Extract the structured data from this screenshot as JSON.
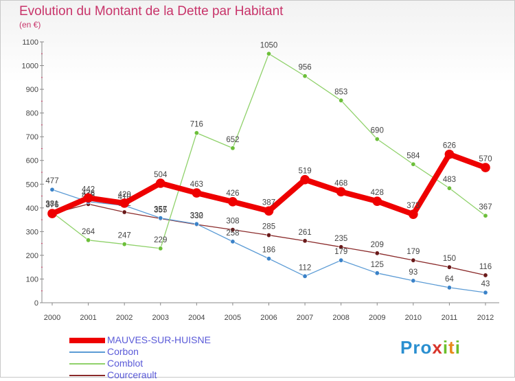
{
  "header": {
    "title": "Evolution du Montant de la Dette par Habitant",
    "subtitle": "(en €)"
  },
  "brand": {
    "logo_text": "Proxiti"
  },
  "colors": {
    "title": "#c8346a",
    "axis": "#888888",
    "grid": "#e6e6e6",
    "tick_label": "#444444",
    "value_label": "#444444",
    "legend_text": "#5a5ad8"
  },
  "chart_data": {
    "type": "line",
    "title": "Evolution du Montant de la Dette par Habitant",
    "subtitle": "(en €)",
    "xlabel": "",
    "ylabel": "",
    "x": [
      "2000",
      "2001",
      "2002",
      "2003",
      "2004",
      "2005",
      "2006",
      "2007",
      "2008",
      "2009",
      "2010",
      "2011",
      "2012"
    ],
    "ylim": [
      0,
      1100
    ],
    "yticks": [
      0,
      100,
      200,
      300,
      400,
      500,
      600,
      700,
      800,
      900,
      1000,
      1100
    ],
    "grid": false,
    "legend_position": "bottom-left",
    "series": [
      {
        "name": "Courcerault",
        "color": "#8a2a2a",
        "marker": "#6a1a1a",
        "width": 1.3,
        "values": [
          376,
          416,
          382,
          355,
          330,
          308,
          285,
          261,
          235,
          209,
          179,
          150,
          116
        ]
      },
      {
        "name": "Corbon",
        "color": "#5b9bd5",
        "marker": "#3a82c8",
        "width": 1.3,
        "values": [
          477,
          426,
          410,
          357,
          332,
          258,
          186,
          112,
          179,
          125,
          93,
          64,
          43
        ]
      },
      {
        "name": "Comblot",
        "color": "#8fd16a",
        "marker": "#6cbf3a",
        "width": 1.3,
        "values": [
          381,
          264,
          247,
          229,
          716,
          652,
          1050,
          956,
          853,
          690,
          584,
          483,
          367
        ]
      },
      {
        "name": "MAUVES-SUR-HUISNE",
        "color": "#ee0000",
        "marker": "#ee0000",
        "width": 8,
        "values": [
          376,
          442,
          420,
          504,
          463,
          426,
          387,
          519,
          468,
          428,
          373,
          626,
          570
        ]
      }
    ],
    "legend_order": [
      "MAUVES-SUR-HUISNE",
      "Corbon",
      "Comblot",
      "Courcerault"
    ]
  }
}
